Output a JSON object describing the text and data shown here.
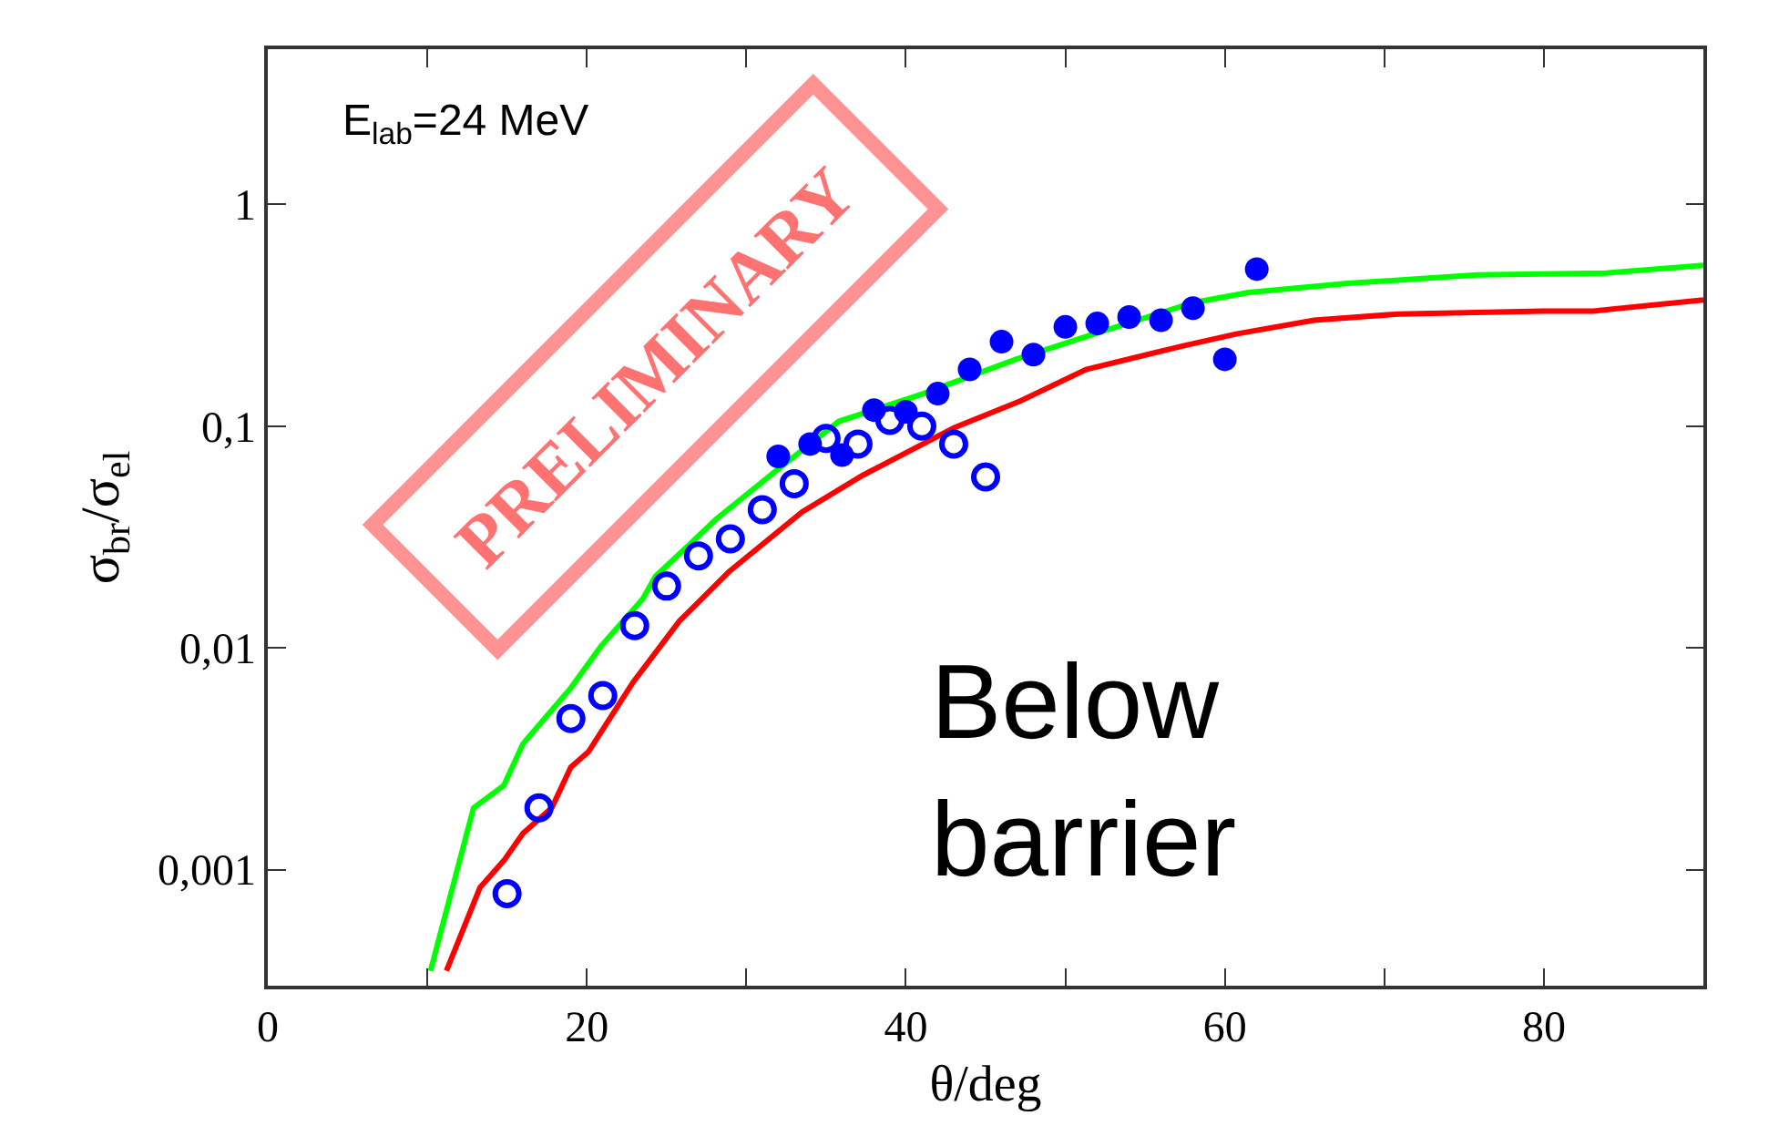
{
  "chart_data": {
    "type": "scatter",
    "xlabel": "θ/deg",
    "ylabel": "σ$_{br}$/σ$_{el}$",
    "annotations": [
      "E$_{lab}$=24 MeV",
      "PRELIMINARY",
      "Below\nbarrier"
    ],
    "log": "y",
    "grid": false,
    "xlim": [
      0,
      90
    ],
    "xticks": [
      0,
      {
        "value": 10,
        "label": null
      },
      20,
      {
        "value": 30,
        "label": null
      },
      40,
      {
        "value": 50,
        "label": null
      },
      60,
      {
        "value": 70,
        "label": null
      },
      80
    ],
    "ylim": [
      0.0003,
      5
    ],
    "yticks": [
      {
        "value": 0.001,
        "label": "0,001"
      },
      {
        "value": 0.01,
        "label": "0,01"
      },
      {
        "value": 0.1,
        "label": "0,1"
      },
      1
    ],
    "series": [
      {
        "type": "line",
        "color": "#00ff00",
        "marker": "none",
        "line_style": "solid",
        "x": [
          10.2,
          12.9,
          14.8,
          16,
          19,
          20.9,
          23.5,
          24.3,
          26.6,
          28.1,
          32,
          35.8,
          41.1,
          46.9,
          51.8,
          58,
          61.5,
          67.7,
          75.8,
          83.9,
          90
        ],
        "values": [
          0.00035,
          0.0019,
          0.0024,
          0.0037,
          0.0066,
          0.0102,
          0.0166,
          0.021,
          0.03,
          0.038,
          0.064,
          0.105,
          0.14,
          0.2,
          0.26,
          0.36,
          0.4,
          0.44,
          0.48,
          0.49,
          0.53
        ]
      },
      {
        "type": "line",
        "color": "#ff0000",
        "marker": "none",
        "line_style": "solid",
        "x": [
          11.2,
          13.3,
          14.8,
          16,
          17.8,
          19,
          20.1,
          22.9,
          25.8,
          28.9,
          33.5,
          37.3,
          43,
          47.2,
          51.3,
          57.4,
          60.7,
          65.6,
          70.9,
          79.9,
          83.1,
          90
        ],
        "values": [
          0.00035,
          0.00083,
          0.0011,
          0.00146,
          0.0019,
          0.0029,
          0.0034,
          0.007,
          0.0132,
          0.022,
          0.041,
          0.06,
          0.098,
          0.13,
          0.18,
          0.23,
          0.26,
          0.3,
          0.32,
          0.33,
          0.33,
          0.37
        ]
      },
      {
        "color": "#0000ff",
        "marker": "circle-open",
        "x": [
          15,
          17,
          19,
          21,
          23,
          25,
          27,
          29,
          31,
          33,
          35,
          37,
          39,
          41,
          43,
          45
        ],
        "values": [
          0.00078,
          0.0019,
          0.0048,
          0.0061,
          0.0126,
          0.019,
          0.026,
          0.031,
          0.042,
          0.055,
          0.088,
          0.083,
          0.106,
          0.1,
          0.083,
          0.059
        ]
      },
      {
        "color": "#0000ff",
        "marker": "circle",
        "x": [
          32,
          34,
          36,
          38,
          40,
          42,
          44,
          46,
          48,
          50,
          52,
          54,
          56,
          58,
          60,
          62
        ],
        "values": [
          0.073,
          0.083,
          0.074,
          0.118,
          0.116,
          0.14,
          0.18,
          0.24,
          0.21,
          0.28,
          0.29,
          0.31,
          0.3,
          0.34,
          0.2,
          0.51
        ]
      }
    ]
  }
}
